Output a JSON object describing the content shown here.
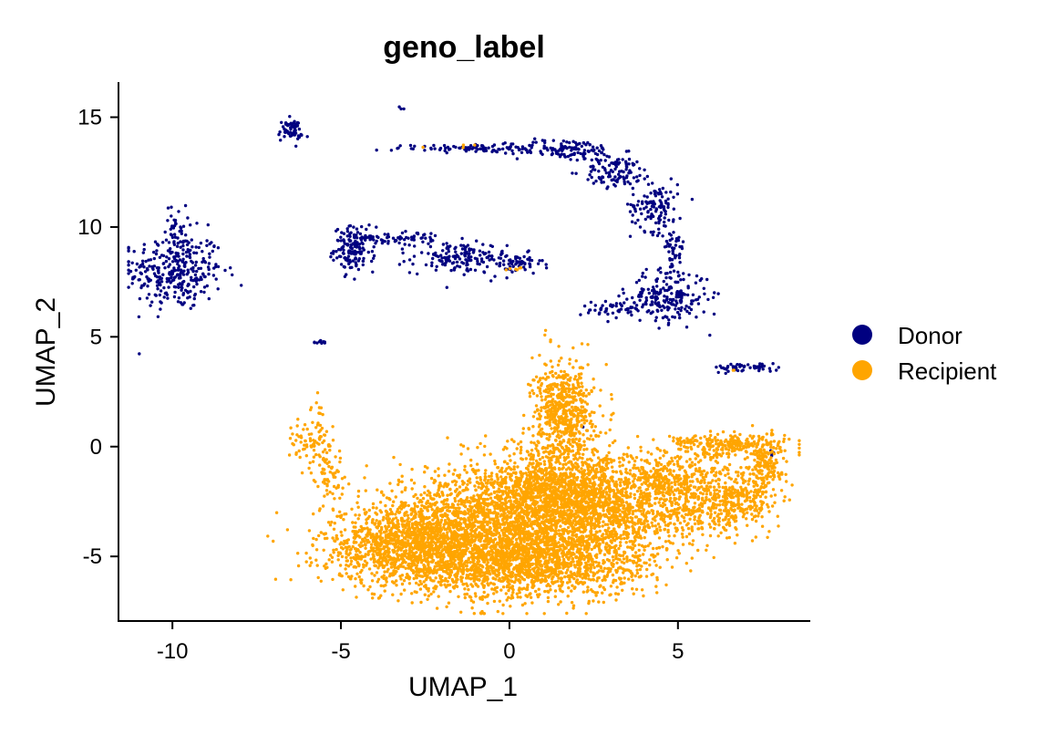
{
  "chart_data": {
    "type": "scatter",
    "title": "geno_label",
    "xlabel": "UMAP_1",
    "ylabel": "UMAP_2",
    "xlim": [
      -11.6,
      8.9
    ],
    "ylim": [
      -7.9,
      16.6
    ],
    "xticks": [
      -10,
      -5,
      0,
      5
    ],
    "yticks": [
      -5,
      0,
      5,
      10,
      15
    ],
    "xtick_labels": [
      "-10",
      "-5",
      "0",
      "5"
    ],
    "ytick_labels": [
      "-5",
      "0",
      "5",
      "10",
      "15"
    ],
    "grid": false,
    "legend_position": "right",
    "series": [
      {
        "name": "Donor",
        "color": "#000080",
        "clusters": [
          {
            "cx": -9.9,
            "cy": 8.0,
            "sx": 0.7,
            "sy": 0.9,
            "n": 320
          },
          {
            "cx": -9.9,
            "cy": 10.0,
            "sx": 0.15,
            "sy": 0.5,
            "n": 30
          },
          {
            "cx": -6.5,
            "cy": 14.4,
            "sx": 0.18,
            "sy": 0.25,
            "n": 60
          },
          {
            "cx": -4.6,
            "cy": 9.0,
            "sx": 0.3,
            "sy": 0.5,
            "n": 150
          },
          {
            "cx": -3.2,
            "cy": 9.5,
            "sx": 0.6,
            "sy": 0.15,
            "n": 60
          },
          {
            "cx": -1.5,
            "cy": 8.6,
            "sx": 0.7,
            "sy": 0.35,
            "n": 150
          },
          {
            "cx": 0.2,
            "cy": 8.3,
            "sx": 0.4,
            "sy": 0.25,
            "n": 60
          },
          {
            "cx": -1.0,
            "cy": 13.6,
            "sx": 1.2,
            "sy": 0.1,
            "n": 90
          },
          {
            "cx": 1.7,
            "cy": 13.5,
            "sx": 0.8,
            "sy": 0.25,
            "n": 120
          },
          {
            "cx": 3.2,
            "cy": 12.5,
            "sx": 0.5,
            "sy": 0.35,
            "n": 100
          },
          {
            "cx": 4.3,
            "cy": 11.0,
            "sx": 0.35,
            "sy": 0.6,
            "n": 120
          },
          {
            "cx": 4.9,
            "cy": 9.1,
            "sx": 0.15,
            "sy": 0.5,
            "n": 50
          },
          {
            "cx": 4.7,
            "cy": 6.8,
            "sx": 0.6,
            "sy": 0.6,
            "n": 200
          },
          {
            "cx": 3.3,
            "cy": 6.3,
            "sx": 0.6,
            "sy": 0.2,
            "n": 60
          },
          {
            "cx": 7.0,
            "cy": 3.6,
            "sx": 0.5,
            "sy": 0.1,
            "n": 50
          },
          {
            "cx": -5.6,
            "cy": 4.75,
            "sx": 0.1,
            "sy": 0.05,
            "n": 10
          },
          {
            "cx": -3.2,
            "cy": 15.4,
            "sx": 0.05,
            "sy": 0.05,
            "n": 3
          },
          {
            "cx": 2.2,
            "cy": 0.9,
            "sx": 0.02,
            "sy": 0.02,
            "n": 1
          },
          {
            "cx": 7.8,
            "cy": -0.3,
            "sx": 0.06,
            "sy": 0.15,
            "n": 4
          }
        ]
      },
      {
        "name": "Recipient",
        "color": "#FFA500",
        "clusters": [
          {
            "cx": -6.0,
            "cy": 0.3,
            "sx": 0.3,
            "sy": 0.4,
            "n": 60
          },
          {
            "cx": -5.4,
            "cy": -1.0,
            "sx": 0.25,
            "sy": 0.8,
            "n": 80
          },
          {
            "cx": -5.7,
            "cy": 1.3,
            "sx": 0.1,
            "sy": 0.4,
            "n": 15
          },
          {
            "cx": -3.0,
            "cy": -4.5,
            "sx": 1.3,
            "sy": 0.9,
            "n": 1200
          },
          {
            "cx": -0.5,
            "cy": -3.5,
            "sx": 1.5,
            "sy": 1.3,
            "n": 1800
          },
          {
            "cx": 0.5,
            "cy": -5.3,
            "sx": 1.8,
            "sy": 0.8,
            "n": 1400
          },
          {
            "cx": 1.6,
            "cy": 1.6,
            "sx": 0.45,
            "sy": 1.1,
            "n": 600
          },
          {
            "cx": 1.5,
            "cy": -2.0,
            "sx": 1.0,
            "sy": 1.0,
            "n": 1000
          },
          {
            "cx": 3.0,
            "cy": -3.0,
            "sx": 1.2,
            "sy": 1.2,
            "n": 1000
          },
          {
            "cx": 5.0,
            "cy": -1.5,
            "sx": 1.0,
            "sy": 0.6,
            "n": 400
          },
          {
            "cx": 6.0,
            "cy": -3.0,
            "sx": 0.8,
            "sy": 0.6,
            "n": 250
          },
          {
            "cx": 6.5,
            "cy": 0.1,
            "sx": 0.9,
            "sy": 0.25,
            "n": 250
          },
          {
            "cx": 7.6,
            "cy": -0.8,
            "sx": 0.25,
            "sy": 0.6,
            "n": 150
          },
          {
            "cx": 7.0,
            "cy": -2.3,
            "sx": 0.5,
            "sy": 0.5,
            "n": 150
          },
          {
            "cx": -1.4,
            "cy": 13.7,
            "sx": 0.6,
            "sy": 0.05,
            "n": 4
          },
          {
            "cx": 0.2,
            "cy": 8.1,
            "sx": 0.2,
            "sy": 0.05,
            "n": 6
          },
          {
            "cx": 6.5,
            "cy": 3.45,
            "sx": 0.15,
            "sy": 0.03,
            "n": 2
          }
        ]
      }
    ]
  }
}
